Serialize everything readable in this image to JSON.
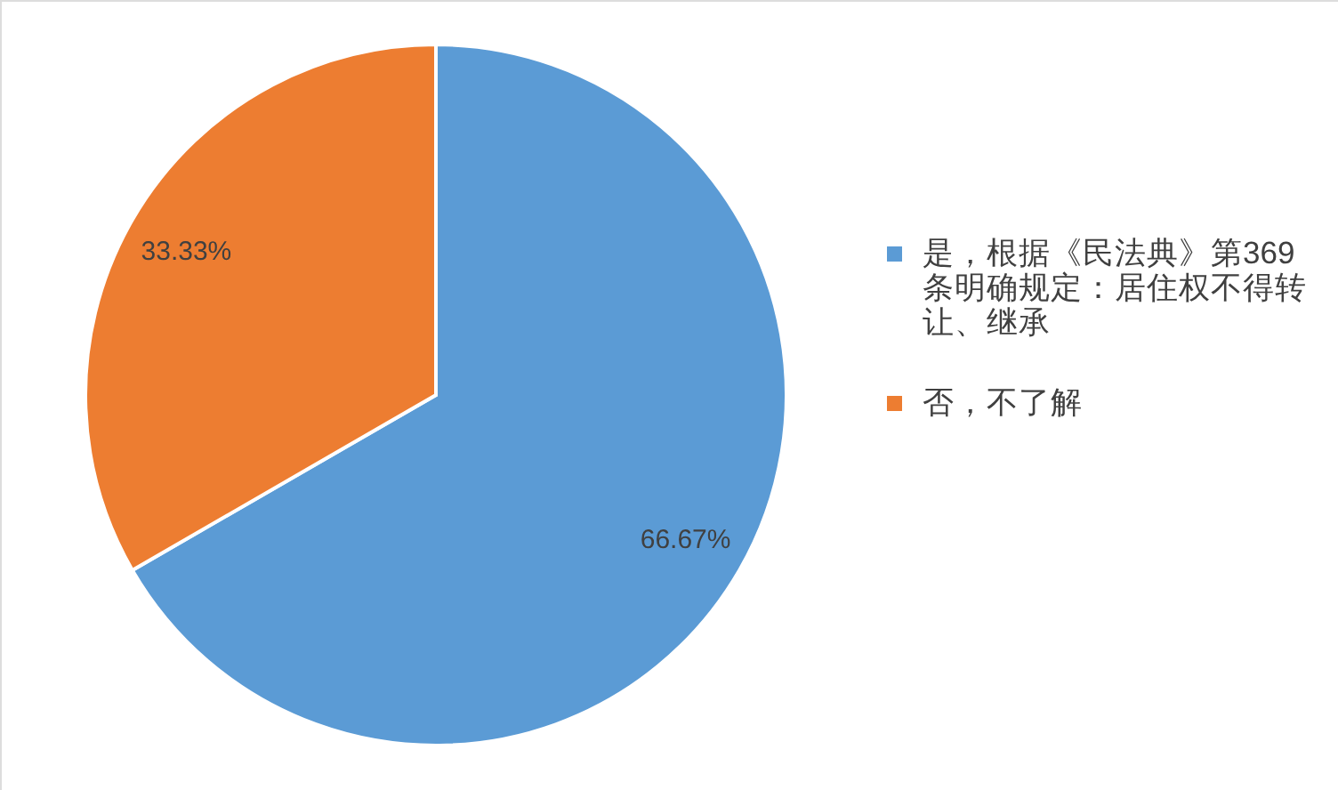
{
  "chart_data": {
    "type": "pie",
    "categories": [
      "是，根据《民法典》第369条明确规定：居住权不得转让、继承",
      "否，不了解"
    ],
    "values": [
      66.67,
      33.33
    ],
    "colors": [
      "#5b9bd5",
      "#ed7d31"
    ],
    "value_labels": [
      "66.67%",
      "33.33%"
    ],
    "legend": "right"
  }
}
